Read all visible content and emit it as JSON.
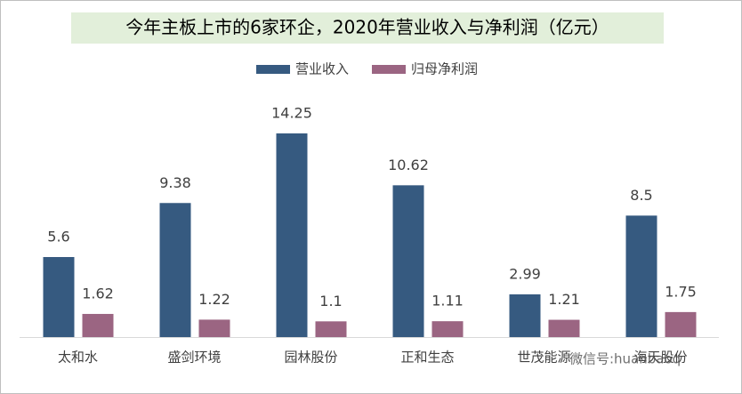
{
  "chart_data": {
    "type": "bar",
    "title": "今年主板上市的6家环企，2020年营业收入与净利润（亿元）",
    "categories": [
      "太和水",
      "盛剑环境",
      "园林股份",
      "正和生态",
      "世茂能源",
      "海天股份"
    ],
    "series": [
      {
        "name": "营业收入",
        "color": "#365a80",
        "values": [
          5.6,
          9.38,
          14.25,
          10.62,
          2.99,
          8.5
        ]
      },
      {
        "name": "归母净利润",
        "color": "#9b6582",
        "values": [
          1.62,
          1.22,
          1.1,
          1.11,
          1.21,
          1.75
        ]
      }
    ],
    "legend": "top",
    "watermark": "微信号:huanbaoq"
  }
}
